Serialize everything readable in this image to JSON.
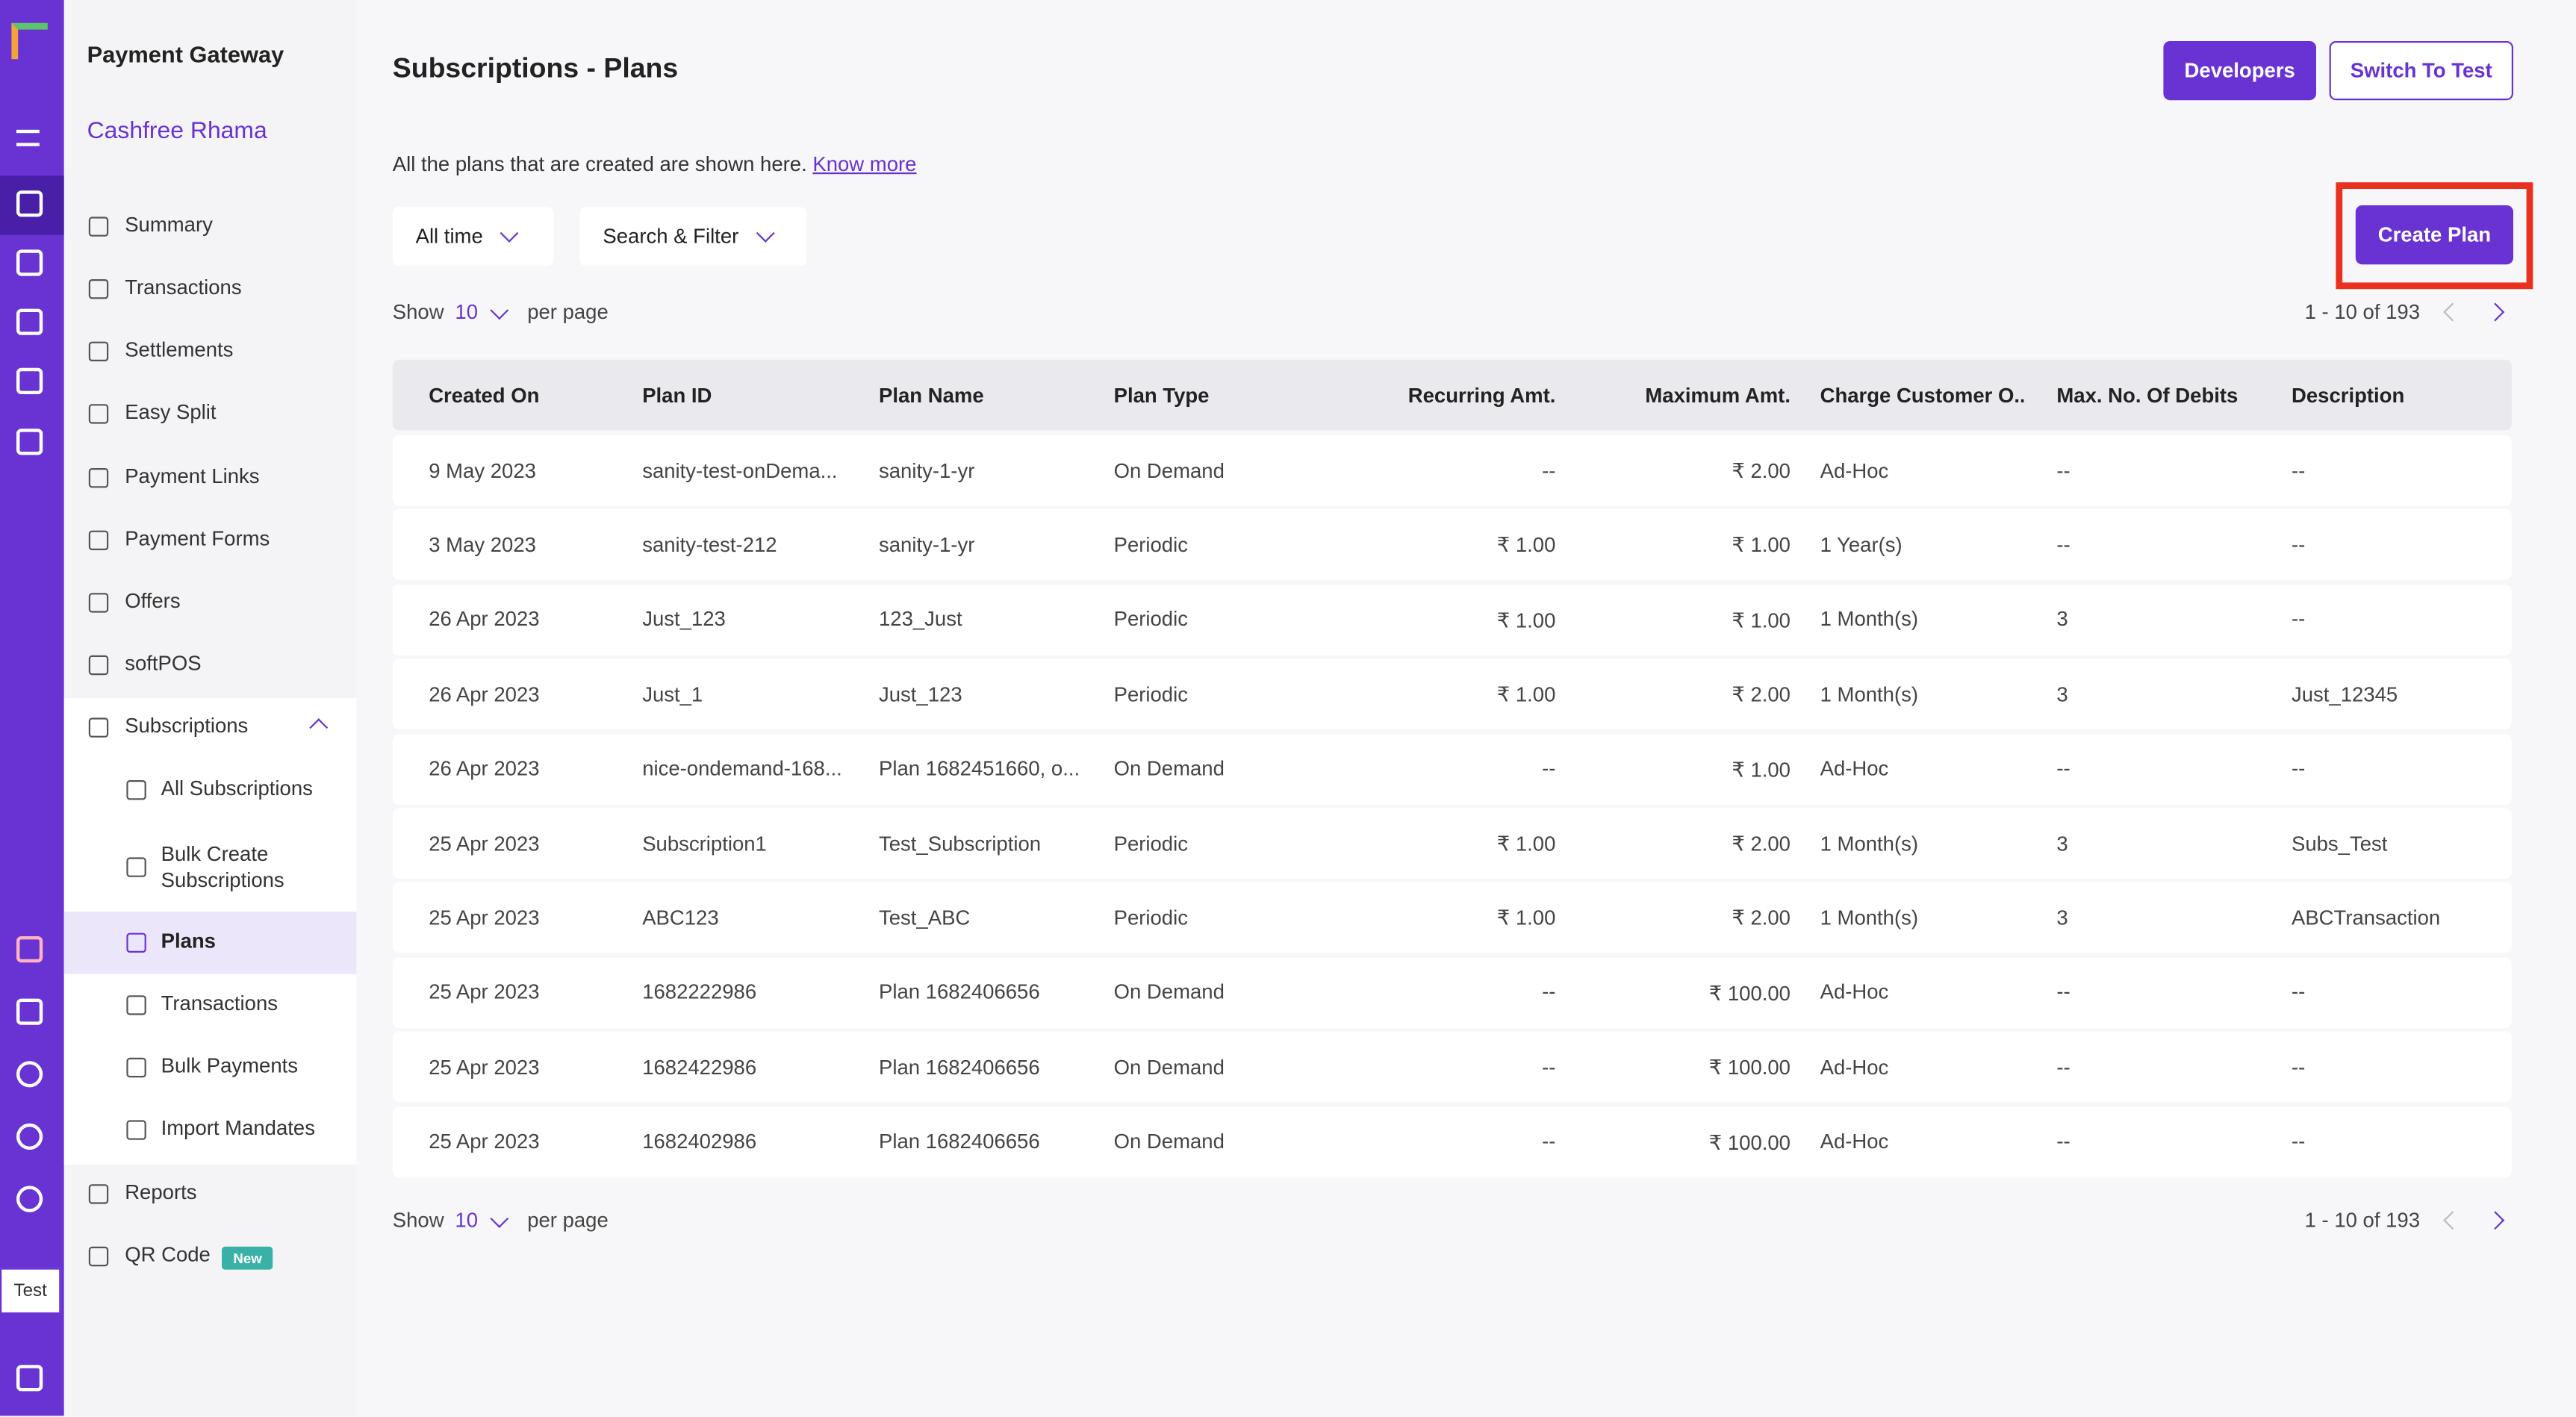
{
  "sidebar": {
    "title": "Payment Gateway",
    "merchant": "Cashfree Rhama",
    "items": [
      "Summary",
      "Transactions",
      "Settlements",
      "Easy Split",
      "Payment Links",
      "Payment Forms",
      "Offers",
      "softPOS",
      "Subscriptions"
    ],
    "sub_items": [
      "All Subscriptions",
      "Bulk Create Subscriptions",
      "Plans",
      "Transactions",
      "Bulk Payments",
      "Import Mandates"
    ],
    "bottom_items": [
      "Reports",
      "QR Code"
    ],
    "new_badge": "New",
    "env_badge": "Test"
  },
  "header": {
    "title": "Subscriptions - Plans",
    "developers": "Developers",
    "switch": "Switch To Test"
  },
  "intro": {
    "text": "All the plans that are created are shown here.",
    "link": "Know more"
  },
  "filters": [
    "All time",
    "Search & Filter"
  ],
  "create_button": "Create Plan",
  "pagination": {
    "show": "Show",
    "per_page_value": "10",
    "per_page": "per page",
    "range": "1 - 10 of 193"
  },
  "table": {
    "columns": [
      "Created On",
      "Plan ID",
      "Plan Name",
      "Plan Type",
      "Recurring Amt.",
      "Maximum Amt.",
      "Charge Customer O...",
      "Max. No. Of Debits",
      "Description"
    ],
    "rows": [
      [
        "9 May 2023",
        "sanity-test-onDema...",
        "sanity-1-yr",
        "On Demand",
        "--",
        "₹ 2.00",
        "Ad-Hoc",
        "--",
        "--"
      ],
      [
        "3 May 2023",
        "sanity-test-212",
        "sanity-1-yr",
        "Periodic",
        "₹ 1.00",
        "₹ 1.00",
        "1 Year(s)",
        "--",
        "--"
      ],
      [
        "26 Apr 2023",
        "Just_123",
        "123_Just",
        "Periodic",
        "₹ 1.00",
        "₹ 1.00",
        "1 Month(s)",
        "3",
        "--"
      ],
      [
        "26 Apr 2023",
        "Just_1",
        "Just_123",
        "Periodic",
        "₹ 1.00",
        "₹ 2.00",
        "1 Month(s)",
        "3",
        "Just_12345"
      ],
      [
        "26 Apr 2023",
        "nice-ondemand-168...",
        "Plan 1682451660, o...",
        "On Demand",
        "--",
        "₹ 1.00",
        "Ad-Hoc",
        "--",
        "--"
      ],
      [
        "25 Apr 2023",
        "Subscription1",
        "Test_Subscription",
        "Periodic",
        "₹ 1.00",
        "₹ 2.00",
        "1 Month(s)",
        "3",
        "Subs_Test"
      ],
      [
        "25 Apr 2023",
        "ABC123",
        "Test_ABC",
        "Periodic",
        "₹ 1.00",
        "₹ 2.00",
        "1 Month(s)",
        "3",
        "ABCTransaction"
      ],
      [
        "25 Apr 2023",
        "1682222986",
        "Plan 1682406656",
        "On Demand",
        "--",
        "₹ 100.00",
        "Ad-Hoc",
        "--",
        "--"
      ],
      [
        "25 Apr 2023",
        "1682422986",
        "Plan 1682406656",
        "On Demand",
        "--",
        "₹ 100.00",
        "Ad-Hoc",
        "--",
        "--"
      ],
      [
        "25 Apr 2023",
        "1682402986",
        "Plan 1682406656",
        "On Demand",
        "--",
        "₹ 100.00",
        "Ad-Hoc",
        "--",
        "--"
      ]
    ]
  }
}
